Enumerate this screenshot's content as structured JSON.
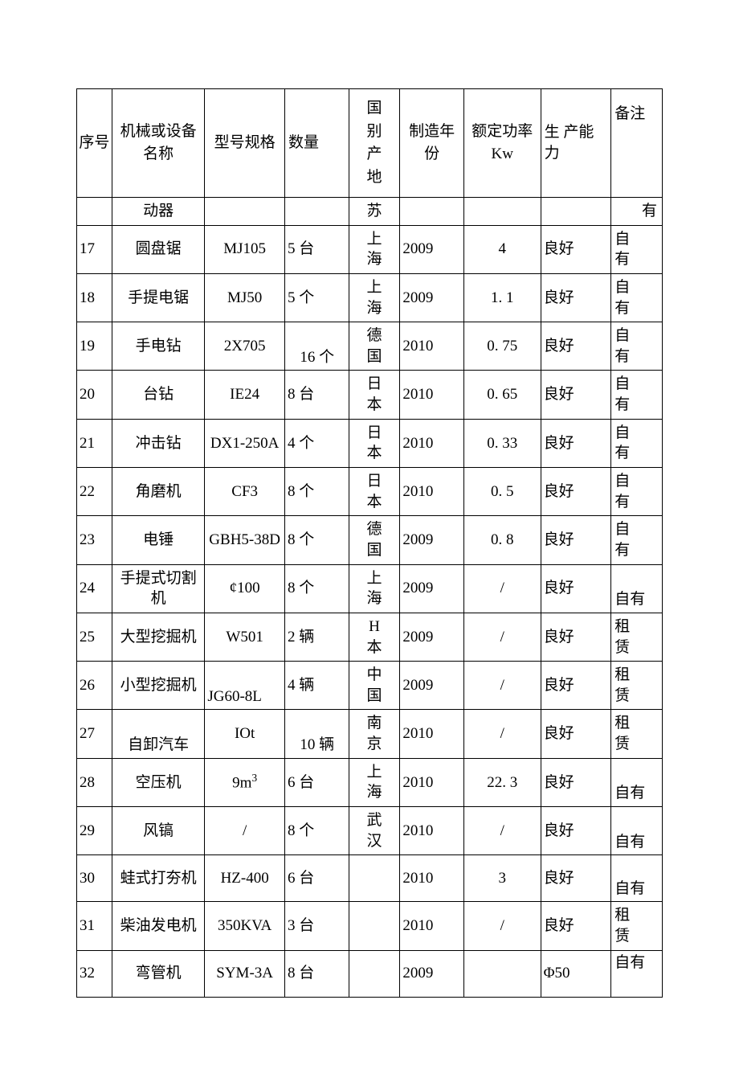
{
  "table": {
    "border_color": "#000000",
    "background_color": "#ffffff",
    "text_color": "#000000",
    "font_family": "SimSun",
    "font_size_pt": 14,
    "columns": [
      {
        "key": "seq",
        "label": "序号",
        "width_pct": 5.5,
        "align": "left"
      },
      {
        "key": "name",
        "label": "机械或设备名称",
        "width_pct": 14.5,
        "align": "center"
      },
      {
        "key": "model",
        "label": "型号规格",
        "width_pct": 12.5,
        "align": "center"
      },
      {
        "key": "qty",
        "label": "数量",
        "width_pct": 10,
        "align": "left"
      },
      {
        "key": "origin",
        "label": "国别产地",
        "width_pct": 8,
        "align": "center"
      },
      {
        "key": "year",
        "label": "制造年份",
        "width_pct": 10,
        "align": "left"
      },
      {
        "key": "power",
        "label": "额定功率 Kw",
        "width_pct": 12,
        "align": "center"
      },
      {
        "key": "capacity",
        "label": "生 产能 力",
        "width_pct": 11,
        "align": "left"
      },
      {
        "key": "remark",
        "label": "备注",
        "width_pct": 8,
        "align": "left"
      }
    ],
    "rows": [
      {
        "seq": "",
        "name": "动器",
        "model": "",
        "qty": "",
        "origin": "苏",
        "year": "",
        "power": "",
        "capacity": "",
        "remark": "有",
        "remark_align": "right"
      },
      {
        "seq": "17",
        "name": "圆盘锯",
        "model": "MJ105",
        "qty": "5 台",
        "origin": "上海",
        "year": "2009",
        "power": "4",
        "capacity": "良好",
        "remark": "自有"
      },
      {
        "seq": "18",
        "name": "手提电锯",
        "model": "MJ50",
        "qty": "5 个",
        "origin": "上海",
        "year": "2009",
        "power": "1. 1",
        "capacity": "良好",
        "remark": "自有"
      },
      {
        "seq": "19",
        "name": "手电钻",
        "model": "2X705",
        "qty": "16 个",
        "qty_valign": "bottom",
        "origin": "德国",
        "year": "2010",
        "power": "0. 75",
        "capacity": "良好",
        "remark": "自有"
      },
      {
        "seq": "20",
        "name": "台钻",
        "model": "IE24",
        "qty": "8 台",
        "origin": "日本",
        "year": "2010",
        "power": "0. 65",
        "capacity": "良好",
        "remark": "自有"
      },
      {
        "seq": "21",
        "name": "冲击钻",
        "model": "DX1-250A",
        "qty": "4 个",
        "origin": "日本",
        "year": "2010",
        "power": "0. 33",
        "capacity": "良好",
        "remark": "自有"
      },
      {
        "seq": "22",
        "name": "角磨机",
        "model": "CF3",
        "qty": "8 个",
        "origin": "日本",
        "year": "2010",
        "power": "0. 5",
        "capacity": "良好",
        "remark": "自有"
      },
      {
        "seq": "23",
        "name": "电锤",
        "model": "GBH5-38D",
        "qty": "8 个",
        "origin": "德国",
        "year": "2009",
        "power": "0. 8",
        "capacity": "良好",
        "remark": "自有"
      },
      {
        "seq": "24",
        "name": "手提式切割机",
        "model": "¢100",
        "qty": "8 个",
        "origin": "上海",
        "year": "2009",
        "power": "/",
        "capacity": "良好",
        "remark": "自有",
        "remark_valign": "bottom"
      },
      {
        "seq": "25",
        "name": "大型挖掘机",
        "model": "W501",
        "qty": "2 辆",
        "origin": "H本",
        "year": "2009",
        "power": "/",
        "capacity": "良好",
        "remark": "租赁"
      },
      {
        "seq": "26",
        "name": "小型挖掘机",
        "model": "JG60-8L",
        "model_valign": "bottom",
        "qty": "4 辆",
        "origin": "中国",
        "year": "2009",
        "power": "/",
        "capacity": "良好",
        "remark": "租赁"
      },
      {
        "seq": "27",
        "name": "自卸汽车",
        "name_valign": "bottom",
        "model": "IOt",
        "qty": "10 辆",
        "qty_valign": "bottom",
        "origin": "南京",
        "year": "2010",
        "power": "/",
        "capacity": "良好",
        "remark": "租赁"
      },
      {
        "seq": "28",
        "name": "空压机",
        "model": "9m³",
        "model_html": "9m<sup>3</sup>",
        "qty": "6 台",
        "origin": "上海",
        "year": "2010",
        "power": "22. 3",
        "capacity": "良好",
        "remark": "自有",
        "remark_valign": "bottom"
      },
      {
        "seq": "29",
        "name": "风镐",
        "model": "/",
        "qty": "8 个",
        "origin": "武汉",
        "year": "2010",
        "power": "/",
        "capacity": "良好",
        "remark": "自有",
        "remark_valign": "bottom"
      },
      {
        "seq": "30",
        "name": "蛙式打夯机",
        "model": "HZ-400",
        "qty": "6 台",
        "origin": "",
        "year": "2010",
        "power": "3",
        "capacity": "良好",
        "remark": "自有",
        "remark_valign": "bottom"
      },
      {
        "seq": "31",
        "name": "柴油发电机",
        "model": "350KVA",
        "qty": "3 台",
        "origin": "",
        "year": "2010",
        "power": "/",
        "capacity": "良好",
        "remark": "租赁"
      },
      {
        "seq": "32",
        "name": "弯管机",
        "model": "SYM-3A",
        "qty": "8 台",
        "origin": "",
        "year": "2009",
        "power": "",
        "capacity": "Φ50",
        "remark": "自有",
        "remark_valign": "top"
      }
    ]
  }
}
